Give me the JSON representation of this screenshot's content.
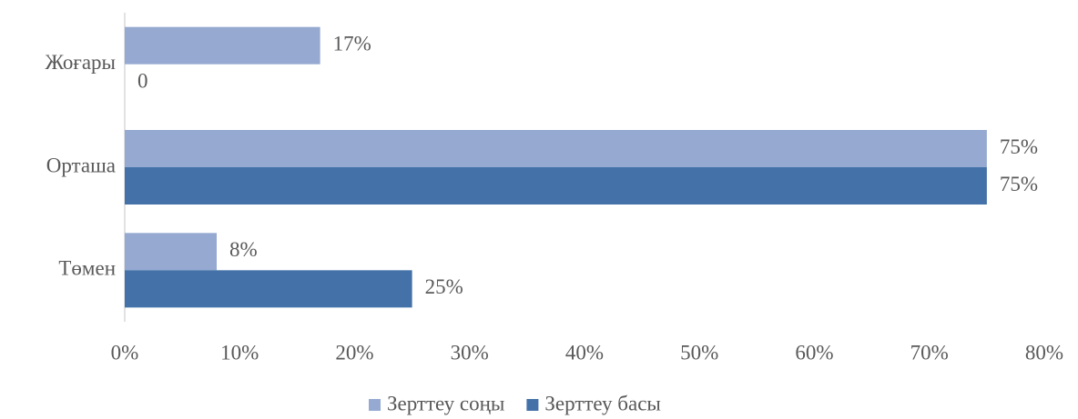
{
  "chart_data": {
    "type": "bar",
    "orientation": "horizontal",
    "categories": [
      "Жоғары",
      "Орташа",
      "Төмен"
    ],
    "series": [
      {
        "name": "Зерттеу соңы",
        "color": "#95a9d1",
        "values": [
          17,
          75,
          8
        ],
        "value_labels": [
          "17%",
          "75%",
          "8%"
        ]
      },
      {
        "name": "Зерттеу басы",
        "color": "#4472a8",
        "values": [
          0,
          75,
          25
        ],
        "value_labels": [
          "0",
          "75%",
          "25%"
        ]
      }
    ],
    "xlim": [
      0,
      80
    ],
    "xticks": [
      {
        "value": 0,
        "label": "0%"
      },
      {
        "value": 10,
        "label": "10%"
      },
      {
        "value": 20,
        "label": "20%"
      },
      {
        "value": 30,
        "label": "30%"
      },
      {
        "value": 40,
        "label": "40%"
      },
      {
        "value": 50,
        "label": "50%"
      },
      {
        "value": 60,
        "label": "60%"
      },
      {
        "value": 70,
        "label": "70%"
      },
      {
        "value": 80,
        "label": "80%"
      }
    ],
    "grid": false,
    "legend": "bottom"
  }
}
